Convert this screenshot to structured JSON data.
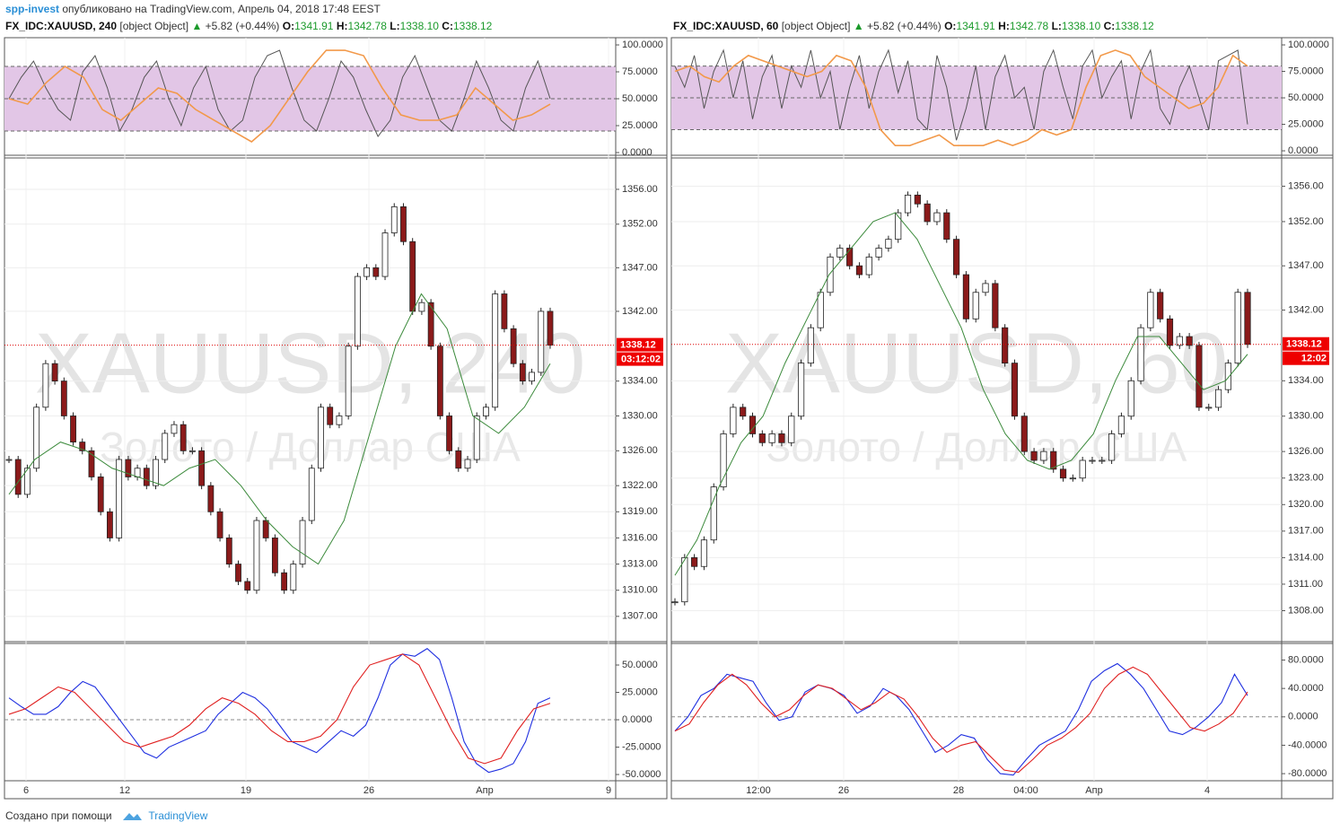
{
  "header": {
    "author": "spp-invest",
    "text": "опубликовано на TradingView.com, Апрель 04, 2018 17:48 EEST"
  },
  "footer": {
    "text": "Создано при помощи",
    "brand": "TradingView"
  },
  "panels": [
    {
      "symbol": "FX_IDC:XAUUSD, 240",
      "price": {
        "ylim": [
          1304.1,
          1359.6
        ],
        "yticks": [
          {
            "value": 1356,
            "label": "1356.00"
          },
          {
            "value": 1352,
            "label": "1352.00"
          },
          {
            "value": 1347,
            "label": "1347.00"
          },
          {
            "value": 1342,
            "label": "1342.00"
          },
          {
            "value": 1334,
            "label": "1334.00"
          },
          {
            "value": 1330,
            "label": "1330.00"
          },
          {
            "value": 1326,
            "label": "1326.00"
          },
          {
            "value": 1322,
            "label": "1322.00"
          },
          {
            "value": 1319,
            "label": "1319.00"
          },
          {
            "value": 1316,
            "label": "1316.00"
          },
          {
            "value": 1313,
            "label": "1313.00"
          },
          {
            "value": 1310,
            "label": "1310.00"
          },
          {
            "value": 1307,
            "label": "1307.00"
          }
        ],
        "closes": [
          1325,
          1321,
          1324,
          1331,
          1336,
          1334,
          1330,
          1327,
          1326,
          1323,
          1319,
          1316,
          1325,
          1323,
          1324,
          1322,
          1325,
          1328,
          1329,
          1326,
          1326,
          1322,
          1319,
          1316,
          1313,
          1311,
          1310,
          1318,
          1316,
          1312,
          1310,
          1313,
          1318,
          1324,
          1331,
          1329,
          1330,
          1338,
          1346,
          1347,
          1346,
          1351,
          1354,
          1350,
          1342,
          1343,
          1338,
          1330,
          1326,
          1324,
          1325,
          1330,
          1331,
          1344,
          1340,
          1336,
          1334,
          1335,
          1342,
          1338.12
        ],
        "ma": [
          1321,
          1325,
          1327,
          1326,
          1324,
          1323,
          1322,
          1324,
          1325,
          1322,
          1318,
          1315,
          1313,
          1318,
          1328,
          1338,
          1344,
          1340,
          1330,
          1328,
          1331,
          1336
        ],
        "last": 1338.12,
        "timer": "03:12:02"
      },
      "arrow": "▲",
      "change": "+5.82 (+0.44%)",
      "ohlc": [
        {
          "label": "O:",
          "value": "1341.91"
        },
        {
          "label": "H:",
          "value": "1342.78"
        },
        {
          "label": "L:",
          "value": "1338.10"
        },
        {
          "label": "C:",
          "value": "1338.12"
        }
      ],
      "watermark": "XAUUSD, 240",
      "watermark_sub": "Золото / Доллар США",
      "xlabels": [
        "6",
        "12",
        "19",
        "26",
        "Апр",
        "9"
      ],
      "stoch": {
        "ylim": [
          -2.5,
          106.7
        ],
        "levels": [
          20,
          50,
          80
        ],
        "yticks": [
          {
            "value": 100,
            "label": "100.0000"
          },
          {
            "value": 75,
            "label": "75.0000"
          },
          {
            "value": 50,
            "label": "50.0000"
          },
          {
            "value": 25,
            "label": "25.0000"
          },
          {
            "value": 0,
            "label": "0.0000"
          }
        ],
        "k": [
          50,
          70,
          85,
          60,
          40,
          30,
          75,
          90,
          60,
          20,
          40,
          70,
          85,
          50,
          25,
          60,
          80,
          40,
          20,
          30,
          70,
          90,
          95,
          60,
          30,
          20,
          50,
          85,
          70,
          40,
          15,
          30,
          70,
          90,
          60,
          30,
          20,
          50,
          85,
          60,
          30,
          20,
          60,
          85,
          50
        ],
        "d": [
          50,
          45,
          65,
          80,
          70,
          40,
          30,
          45,
          60,
          55,
          40,
          30,
          20,
          10,
          25,
          50,
          75,
          95,
          95,
          90,
          60,
          35,
          30,
          30,
          35,
          60,
          45,
          30,
          35,
          45
        ]
      },
      "macd": {
        "ylim": [
          -55.7,
          69.7
        ],
        "yticks": [
          {
            "value": 50,
            "label": "50.0000"
          },
          {
            "value": 25,
            "label": "25.0000"
          },
          {
            "value": 0,
            "label": "0.0000"
          },
          {
            "value": -25,
            "label": "-25.0000"
          },
          {
            "value": -50,
            "label": "-50.0000"
          }
        ],
        "macd": [
          20,
          12,
          5,
          5,
          12,
          25,
          35,
          30,
          15,
          0,
          -15,
          -30,
          -35,
          -25,
          -20,
          -15,
          -10,
          5,
          15,
          25,
          20,
          10,
          -5,
          -20,
          -25,
          -30,
          -20,
          -10,
          -15,
          -5,
          20,
          50,
          60,
          58,
          65,
          55,
          20,
          -20,
          -40,
          -48,
          -45,
          -40,
          -20,
          15,
          20
        ],
        "signal": [
          5,
          10,
          20,
          30,
          25,
          10,
          -5,
          -20,
          -25,
          -20,
          -15,
          -5,
          10,
          20,
          15,
          5,
          -10,
          -20,
          -20,
          -15,
          0,
          30,
          50,
          55,
          60,
          50,
          20,
          -10,
          -35,
          -40,
          -35,
          -10,
          10,
          15
        ]
      }
    },
    {
      "symbol": "FX_IDC:XAUUSD, 60",
      "price": {
        "ylim": [
          1304.5,
          1359.2
        ],
        "yticks": [
          {
            "value": 1356,
            "label": "1356.00"
          },
          {
            "value": 1352,
            "label": "1352.00"
          },
          {
            "value": 1347,
            "label": "1347.00"
          },
          {
            "value": 1342,
            "label": "1342.00"
          },
          {
            "value": 1334,
            "label": "1334.00"
          },
          {
            "value": 1330,
            "label": "1330.00"
          },
          {
            "value": 1326,
            "label": "1326.00"
          },
          {
            "value": 1323,
            "label": "1323.00"
          },
          {
            "value": 1320,
            "label": "1320.00"
          },
          {
            "value": 1317,
            "label": "1317.00"
          },
          {
            "value": 1314,
            "label": "1314.00"
          },
          {
            "value": 1311,
            "label": "1311.00"
          },
          {
            "value": 1308,
            "label": "1308.00"
          }
        ],
        "closes": [
          1309,
          1314,
          1313,
          1316,
          1322,
          1328,
          1331,
          1330,
          1328,
          1327,
          1328,
          1327,
          1330,
          1336,
          1340,
          1344,
          1348,
          1349,
          1347,
          1346,
          1348,
          1349,
          1350,
          1353,
          1355,
          1354,
          1352,
          1353,
          1350,
          1346,
          1341,
          1344,
          1345,
          1340,
          1336,
          1330,
          1326,
          1325,
          1326,
          1324,
          1323,
          1323,
          1325,
          1325,
          1325,
          1328,
          1330,
          1334,
          1340,
          1344,
          1341,
          1338,
          1339,
          1338,
          1331,
          1331,
          1333,
          1336,
          1344,
          1338.12
        ],
        "ma": [
          1312,
          1316,
          1322,
          1327,
          1330,
          1336,
          1341,
          1346,
          1349,
          1352,
          1353,
          1350,
          1345,
          1340,
          1333,
          1328,
          1325,
          1324,
          1325,
          1328,
          1334,
          1339,
          1339,
          1336,
          1333,
          1334,
          1337
        ],
        "last": 1338.12,
        "timer": "12:02"
      },
      "arrow": "▲",
      "change": "+5.82 (+0.44%)",
      "ohlc": [
        {
          "label": "O:",
          "value": "1341.91"
        },
        {
          "label": "H:",
          "value": "1342.78"
        },
        {
          "label": "L:",
          "value": "1338.10"
        },
        {
          "label": "C:",
          "value": "1338.12"
        }
      ],
      "watermark": "XAUUSD, 60",
      "watermark_sub": "Золото / Доллар США",
      "xlabels": [
        "12:00",
        "26",
        "28",
        "04:00",
        "Апр",
        "4"
      ],
      "stoch": {
        "ylim": [
          -4.2,
          106.8
        ],
        "levels": [
          20,
          50,
          80
        ],
        "yticks": [
          {
            "value": 100,
            "label": "100.0000"
          },
          {
            "value": 75,
            "label": "75.0000"
          },
          {
            "value": 50,
            "label": "50.0000"
          },
          {
            "value": 25,
            "label": "25.0000"
          },
          {
            "value": 0,
            "label": "0.0000"
          }
        ],
        "k": [
          80,
          60,
          90,
          40,
          75,
          95,
          50,
          85,
          30,
          70,
          90,
          40,
          80,
          60,
          95,
          50,
          75,
          20,
          60,
          90,
          40,
          75,
          95,
          55,
          85,
          30,
          20,
          90,
          60,
          10,
          40,
          80,
          20,
          70,
          90,
          50,
          60,
          20,
          75,
          95,
          60,
          30,
          80,
          95,
          50,
          70,
          85,
          30,
          75,
          95,
          40,
          25,
          60,
          80,
          50,
          20,
          85,
          90,
          95,
          25
        ],
        "d": [
          75,
          80,
          70,
          65,
          80,
          90,
          85,
          80,
          75,
          70,
          75,
          90,
          85,
          60,
          20,
          5,
          5,
          10,
          15,
          5,
          5,
          5,
          10,
          5,
          10,
          20,
          15,
          20,
          60,
          90,
          95,
          90,
          70,
          60,
          50,
          40,
          45,
          60,
          90,
          80
        ]
      },
      "macd": {
        "ylim": [
          -90,
          103.4
        ],
        "yticks": [
          {
            "value": 80,
            "label": "80.0000"
          },
          {
            "value": 40,
            "label": "40.0000"
          },
          {
            "value": 0,
            "label": "0.0000"
          },
          {
            "value": -40,
            "label": "-40.0000"
          },
          {
            "value": -80,
            "label": "-80.0000"
          }
        ],
        "macd": [
          -20,
          0,
          30,
          40,
          60,
          55,
          50,
          20,
          -5,
          0,
          35,
          45,
          40,
          30,
          5,
          15,
          40,
          30,
          10,
          -20,
          -50,
          -40,
          -25,
          -30,
          -60,
          -80,
          -82,
          -60,
          -40,
          -30,
          -20,
          10,
          50,
          65,
          75,
          60,
          40,
          10,
          -20,
          -25,
          -15,
          0,
          20,
          60,
          30
        ],
        "signal": [
          -20,
          -10,
          20,
          45,
          60,
          45,
          20,
          0,
          10,
          30,
          45,
          40,
          25,
          10,
          20,
          35,
          25,
          0,
          -30,
          -50,
          -40,
          -35,
          -55,
          -75,
          -78,
          -60,
          -40,
          -30,
          -15,
          5,
          40,
          60,
          70,
          60,
          35,
          10,
          -15,
          -20,
          -10,
          5,
          35
        ]
      }
    }
  ]
}
